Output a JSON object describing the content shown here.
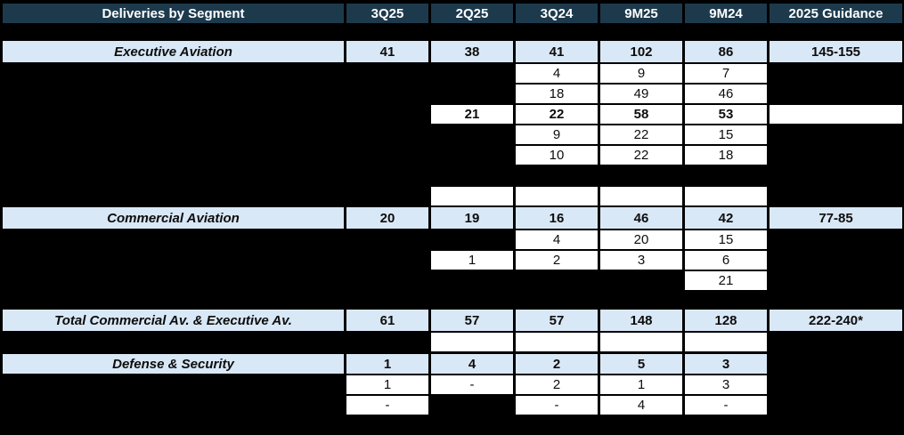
{
  "colors": {
    "background": "#000000",
    "header_bg": "#1d3a4d",
    "header_text": "#ffffff",
    "section_row_bg": "#d9e8f6",
    "detail_cell_bg": "#ffffff",
    "cell_text": "#0d0d0d"
  },
  "header": {
    "title": "Deliveries by Segment",
    "columns": [
      "3Q25",
      "2Q25",
      "3Q24",
      "9M25",
      "9M24",
      "2025 Guidance"
    ]
  },
  "rows": [
    {
      "type": "section",
      "label": "Executive Aviation",
      "values": [
        "41",
        "38",
        "41",
        "102",
        "86"
      ],
      "guidance": "145-155"
    },
    {
      "type": "detail",
      "values": [
        null,
        null,
        "4",
        "9",
        "7"
      ],
      "guidance": null
    },
    {
      "type": "detail",
      "values": [
        null,
        null,
        "18",
        "49",
        "46"
      ],
      "guidance": null
    },
    {
      "type": "detail",
      "bold": true,
      "values": [
        null,
        "21",
        "22",
        "58",
        "53"
      ],
      "guidance": ""
    },
    {
      "type": "detail",
      "values": [
        null,
        null,
        "9",
        "22",
        "15"
      ],
      "guidance": null
    },
    {
      "type": "detail",
      "values": [
        null,
        null,
        "10",
        "22",
        "18"
      ],
      "guidance": null
    },
    {
      "type": "detail",
      "values": [
        null,
        "",
        "",
        "",
        ""
      ],
      "guidance": null
    },
    {
      "type": "section",
      "label": "Commercial Aviation",
      "values": [
        "20",
        "19",
        "16",
        "46",
        "42"
      ],
      "guidance": "77-85"
    },
    {
      "type": "detail",
      "values": [
        null,
        null,
        "4",
        "20",
        "15"
      ],
      "guidance": null
    },
    {
      "type": "detail",
      "values": [
        null,
        "1",
        "2",
        "3",
        "6"
      ],
      "guidance": null
    },
    {
      "type": "detail",
      "values": [
        null,
        null,
        null,
        null,
        "21"
      ],
      "guidance": null
    },
    {
      "type": "section",
      "label": "Total Commercial Av. & Executive Av.",
      "values": [
        "61",
        "57",
        "57",
        "148",
        "128"
      ],
      "guidance": "222-240*"
    },
    {
      "type": "detail",
      "values": [
        null,
        "",
        "",
        "",
        ""
      ],
      "guidance": null
    },
    {
      "type": "section",
      "label": "Defense & Security",
      "values": [
        "1",
        "4",
        "2",
        "5",
        "3"
      ],
      "guidance": null
    },
    {
      "type": "detail",
      "values": [
        "1",
        "-",
        "2",
        "1",
        "3"
      ],
      "guidance": null
    },
    {
      "type": "detail",
      "values": [
        "-",
        null,
        "-",
        "4",
        "-"
      ],
      "guidance": null
    }
  ]
}
